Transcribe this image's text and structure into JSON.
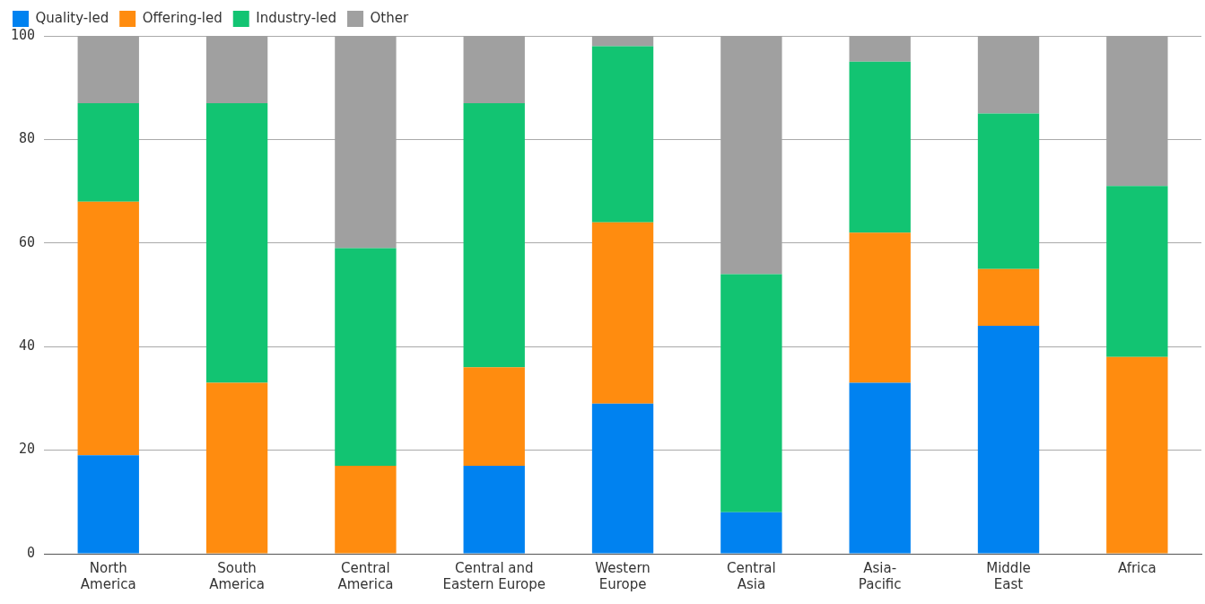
{
  "chart_data": {
    "type": "bar",
    "stacked": true,
    "categories": [
      "North America",
      "South America",
      "Central America",
      "Central and Eastern Europe",
      "Western Europe",
      "Central Asia",
      "Asia-Pacific",
      "Middle East",
      "Africa"
    ],
    "series": [
      {
        "name": "Quality-led",
        "color": "#0082f0",
        "values": [
          19,
          0,
          0,
          17,
          29,
          8,
          33,
          44,
          0
        ]
      },
      {
        "name": "Offering-led",
        "color": "#ff8c0f",
        "values": [
          49,
          33,
          17,
          19,
          35,
          0,
          29,
          11,
          38
        ]
      },
      {
        "name": "Industry-led",
        "color": "#12c472",
        "values": [
          19,
          54,
          42,
          51,
          34,
          46,
          33,
          30,
          33
        ]
      },
      {
        "name": "Other",
        "color": "#a0a0a0",
        "values": [
          13,
          13,
          41,
          13,
          2,
          46,
          5,
          15,
          29
        ]
      }
    ],
    "ylim": [
      0,
      100
    ],
    "yticks": [
      0,
      20,
      40,
      60,
      80,
      100
    ],
    "grid": "y",
    "legend": "top left"
  }
}
